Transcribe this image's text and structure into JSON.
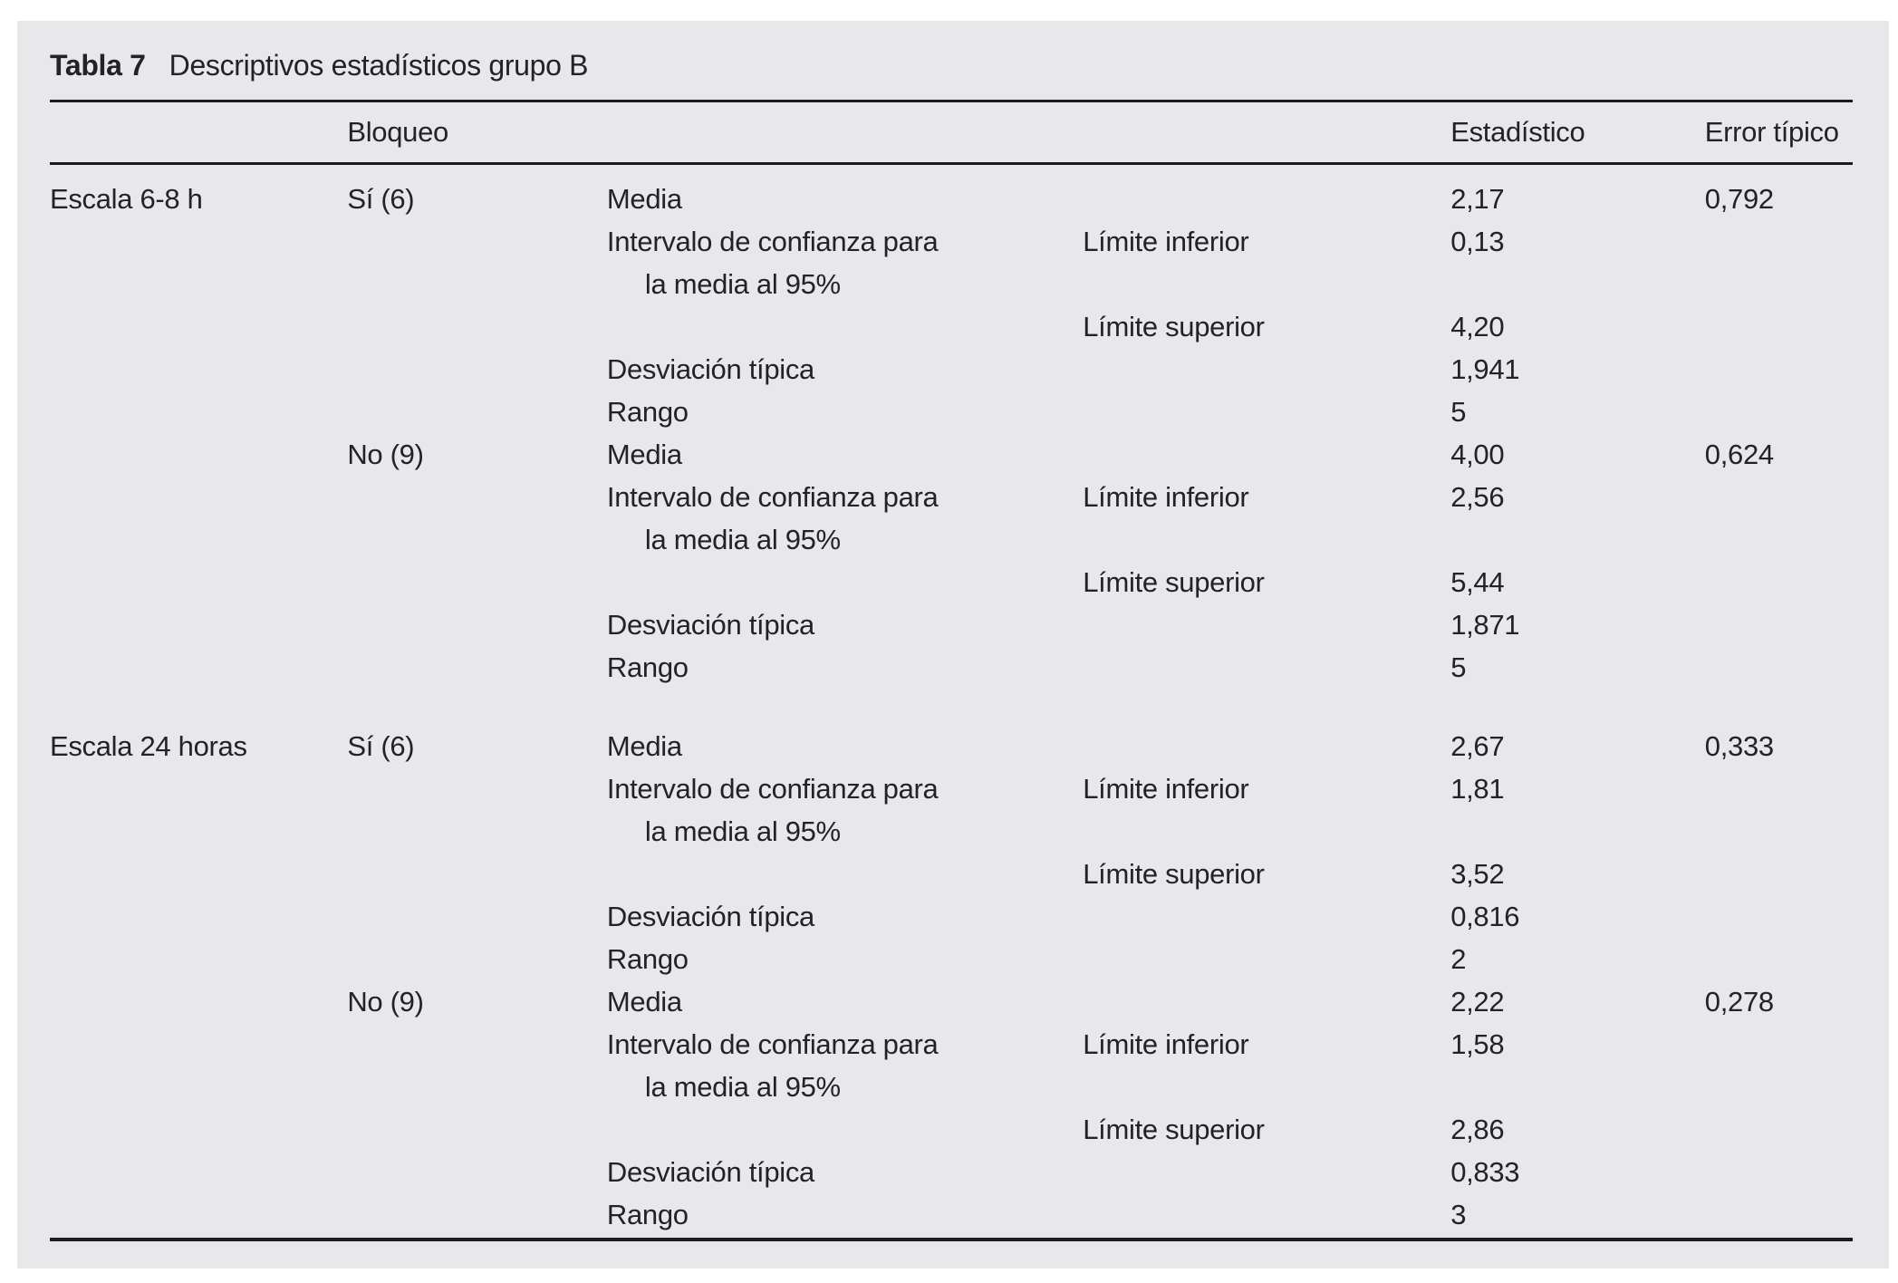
{
  "table": {
    "title_label": "Tabla 7",
    "title_text": "Descriptivos estadísticos grupo B",
    "columns": {
      "bloqueo": "Bloqueo",
      "estadistico": "Estadístico",
      "error_tipico": "Error típico"
    },
    "colors": {
      "panel_background": "#e8e8ea",
      "text": "#232228",
      "rule": "#1c1b20"
    },
    "rows": [
      {
        "scale": "Escala 6-8 h",
        "bloqueo": "Sí (6)",
        "stat": "Media",
        "sublabel": "",
        "value": "2,17",
        "error": "0,792"
      },
      {
        "scale": "",
        "bloqueo": "",
        "stat": "Intervalo de confianza para",
        "sublabel": "Límite inferior",
        "value": "0,13",
        "error": ""
      },
      {
        "scale": "",
        "bloqueo": "",
        "stat": "la media al 95%",
        "indent": true,
        "sublabel": "",
        "value": "",
        "error": ""
      },
      {
        "scale": "",
        "bloqueo": "",
        "stat": "",
        "sublabel": "Límite superior",
        "value": "4,20",
        "error": ""
      },
      {
        "scale": "",
        "bloqueo": "",
        "stat": "Desviación típica",
        "sublabel": "",
        "value": "1,941",
        "error": ""
      },
      {
        "scale": "",
        "bloqueo": "",
        "stat": "Rango",
        "sublabel": "",
        "value": "5",
        "error": ""
      },
      {
        "scale": "",
        "bloqueo": "No (9)",
        "stat": "Media",
        "sublabel": "",
        "value": "4,00",
        "error": "0,624"
      },
      {
        "scale": "",
        "bloqueo": "",
        "stat": "Intervalo de confianza para",
        "sublabel": "Límite inferior",
        "value": "2,56",
        "error": ""
      },
      {
        "scale": "",
        "bloqueo": "",
        "stat": "la media al 95%",
        "indent": true,
        "sublabel": "",
        "value": "",
        "error": ""
      },
      {
        "scale": "",
        "bloqueo": "",
        "stat": "",
        "sublabel": "Límite superior",
        "value": "5,44",
        "error": ""
      },
      {
        "scale": "",
        "bloqueo": "",
        "stat": "Desviación típica",
        "sublabel": "",
        "value": "1,871",
        "error": ""
      },
      {
        "scale": "",
        "bloqueo": "",
        "stat": "Rango",
        "sublabel": "",
        "value": "5",
        "error": ""
      },
      {
        "type": "spacer"
      },
      {
        "scale": "Escala 24 horas",
        "bloqueo": "Sí (6)",
        "stat": "Media",
        "sublabel": "",
        "value": "2,67",
        "error": "0,333"
      },
      {
        "scale": "",
        "bloqueo": "",
        "stat": "Intervalo de confianza para",
        "sublabel": "Límite inferior",
        "value": "1,81",
        "error": ""
      },
      {
        "scale": "",
        "bloqueo": "",
        "stat": "la media al 95%",
        "indent": true,
        "sublabel": "",
        "value": "",
        "error": ""
      },
      {
        "scale": "",
        "bloqueo": "",
        "stat": "",
        "sublabel": "Límite superior",
        "value": "3,52",
        "error": ""
      },
      {
        "scale": "",
        "bloqueo": "",
        "stat": "Desviación típica",
        "sublabel": "",
        "value": "0,816",
        "error": ""
      },
      {
        "scale": "",
        "bloqueo": "",
        "stat": "Rango",
        "sublabel": "",
        "value": "2",
        "error": ""
      },
      {
        "scale": "",
        "bloqueo": "No (9)",
        "stat": "Media",
        "sublabel": "",
        "value": "2,22",
        "error": "0,278"
      },
      {
        "scale": "",
        "bloqueo": "",
        "stat": "Intervalo de confianza para",
        "sublabel": "Límite inferior",
        "value": "1,58",
        "error": ""
      },
      {
        "scale": "",
        "bloqueo": "",
        "stat": "la media al 95%",
        "indent": true,
        "sublabel": "",
        "value": "",
        "error": ""
      },
      {
        "scale": "",
        "bloqueo": "",
        "stat": "",
        "sublabel": "Límite superior",
        "value": "2,86",
        "error": ""
      },
      {
        "scale": "",
        "bloqueo": "",
        "stat": "Desviación típica",
        "sublabel": "",
        "value": "0,833",
        "error": ""
      },
      {
        "scale": "",
        "bloqueo": "",
        "stat": "Rango",
        "sublabel": "",
        "value": "3",
        "error": ""
      }
    ]
  }
}
